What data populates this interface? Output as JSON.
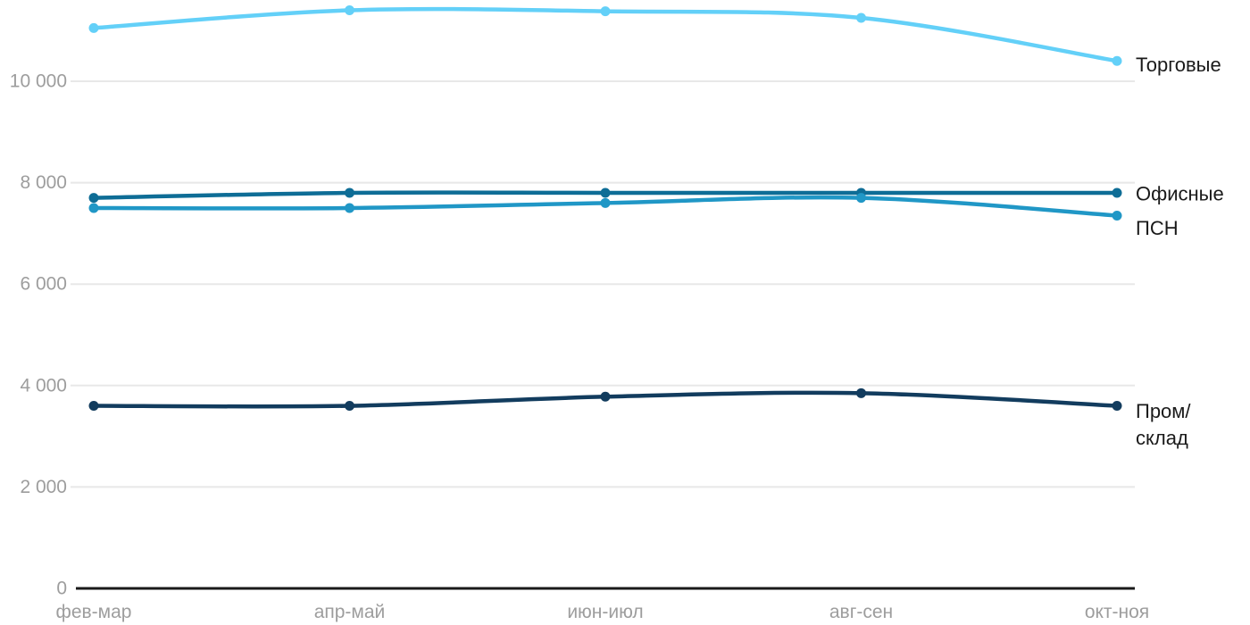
{
  "chart_data": {
    "type": "line",
    "title": "",
    "xlabel": "",
    "ylabel": "",
    "categories": [
      "фев-мар",
      "апр-май",
      "июн-июл",
      "авг-сен",
      "окт-ноя"
    ],
    "y_ticks": [
      {
        "value": 0,
        "label": "0"
      },
      {
        "value": 2000,
        "label": "2 000"
      },
      {
        "value": 4000,
        "label": "4 000"
      },
      {
        "value": 6000,
        "label": "6 000"
      },
      {
        "value": 8000,
        "label": "8 000"
      },
      {
        "value": 10000,
        "label": "10 000"
      }
    ],
    "ylim": [
      0,
      11600
    ],
    "grid": "horizontal-only",
    "legend_position": "right-end-labels",
    "series": [
      {
        "key": "torgovye",
        "name": "Торговые",
        "label_lines": [
          "Торговые"
        ],
        "color": "#63d0f8",
        "values": [
          11050,
          11400,
          11380,
          11250,
          10400
        ]
      },
      {
        "key": "ofisnye",
        "name": "Офисные",
        "label_lines": [
          "Офисные"
        ],
        "color": "#0e6d96",
        "values": [
          7700,
          7800,
          7800,
          7800,
          7800
        ]
      },
      {
        "key": "psn",
        "name": "ПСН",
        "label_lines": [
          "ПСН"
        ],
        "color": "#2097c6",
        "values": [
          7500,
          7500,
          7600,
          7700,
          7350
        ]
      },
      {
        "key": "prom_sklad",
        "name": "Пром/склад",
        "label_lines": [
          "Пром/",
          "склад"
        ],
        "color": "#123c5e",
        "values": [
          3600,
          3600,
          3780,
          3850,
          3600
        ]
      }
    ]
  },
  "colors": {
    "background": "#ffffff",
    "gridline": "#e8e8e8",
    "axis_line": "#1a1a1a",
    "tick_text": "#9d9d9d",
    "series_label_text": "#1a1a1a"
  }
}
